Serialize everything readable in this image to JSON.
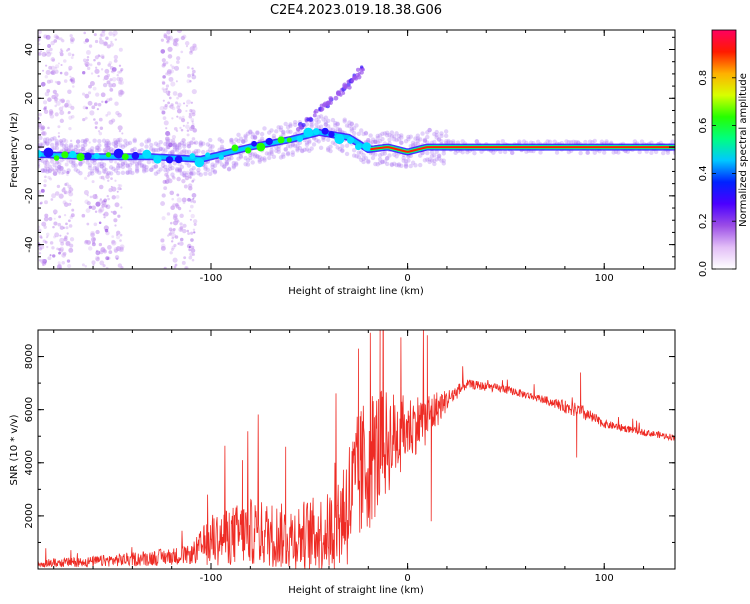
{
  "figure_title": "C2E4.2023.019.18.38.G06",
  "chart_data": [
    {
      "type": "heatmap",
      "xlabel": "Height of straight line (km)",
      "ylabel": "Frequency (Hz)",
      "xlim": [
        -188,
        136
      ],
      "ylim": [
        -50,
        48
      ],
      "xticks": [
        -100,
        0,
        100
      ],
      "yticks": [
        -40,
        -20,
        0,
        20,
        40
      ],
      "colorbar": {
        "label": "Normalized spectral amplitude",
        "range": [
          0,
          1
        ],
        "ticks": [
          0.0,
          0.2,
          0.4,
          0.6,
          0.8
        ],
        "tick_labels": [
          "0.0",
          "0.2",
          "0.4",
          "0.6",
          "0.8"
        ],
        "colors": [
          "#ffffff",
          "#e3bff7",
          "#9b4de6",
          "#4b00ff",
          "#0022ff",
          "#00c8ff",
          "#00ff80",
          "#26ff00",
          "#d8ff00",
          "#ffb000",
          "#ff1a00",
          "#ff0060"
        ]
      },
      "tone_ridge": [
        {
          "x": -188,
          "y": -3
        },
        {
          "x": -160,
          "y": -4
        },
        {
          "x": -130,
          "y": -4
        },
        {
          "x": -105,
          "y": -5
        },
        {
          "x": -80,
          "y": 0
        },
        {
          "x": -60,
          "y": 3
        },
        {
          "x": -45,
          "y": 6
        },
        {
          "x": -30,
          "y": 4
        },
        {
          "x": -20,
          "y": -1
        },
        {
          "x": -10,
          "y": 0
        },
        {
          "x": 0,
          "y": -2
        },
        {
          "x": 10,
          "y": 0
        },
        {
          "x": 30,
          "y": 0
        },
        {
          "x": 136,
          "y": 0
        }
      ],
      "rising_branch": [
        {
          "x": -55,
          "y": 8
        },
        {
          "x": -45,
          "y": 15
        },
        {
          "x": -35,
          "y": 22
        },
        {
          "x": -27,
          "y": 28
        },
        {
          "x": -22,
          "y": 33
        }
      ]
    },
    {
      "type": "line",
      "xlabel": "Height of straight line (km)",
      "ylabel": "SNR (10 * v/v)",
      "xlim": [
        -188,
        136
      ],
      "ylim": [
        0,
        9000
      ],
      "xticks": [
        -100,
        0,
        100
      ],
      "yticks": [
        2000,
        4000,
        6000,
        8000
      ],
      "color": "#ee2b24",
      "envelope": [
        {
          "x": -188,
          "base": 150,
          "spread": 300
        },
        {
          "x": -160,
          "base": 200,
          "spread": 400
        },
        {
          "x": -130,
          "base": 300,
          "spread": 600
        },
        {
          "x": -110,
          "base": 400,
          "spread": 700
        },
        {
          "x": -100,
          "base": 700,
          "spread": 2000
        },
        {
          "x": -80,
          "base": 900,
          "spread": 2500
        },
        {
          "x": -60,
          "base": 700,
          "spread": 2500
        },
        {
          "x": -40,
          "base": 800,
          "spread": 3000
        },
        {
          "x": -30,
          "base": 1500,
          "spread": 5000
        },
        {
          "x": -20,
          "base": 3000,
          "spread": 5500
        },
        {
          "x": -10,
          "base": 4000,
          "spread": 4000
        },
        {
          "x": 0,
          "base": 4800,
          "spread": 2500
        },
        {
          "x": 10,
          "base": 5300,
          "spread": 2000
        },
        {
          "x": 20,
          "base": 6200,
          "spread": 800
        },
        {
          "x": 30,
          "base": 6900,
          "spread": 350
        },
        {
          "x": 50,
          "base": 6700,
          "spread": 300
        },
        {
          "x": 70,
          "base": 6300,
          "spread": 300
        },
        {
          "x": 88,
          "base": 5800,
          "spread": 600
        },
        {
          "x": 100,
          "base": 5400,
          "spread": 300
        },
        {
          "x": 120,
          "base": 5100,
          "spread": 250
        },
        {
          "x": 136,
          "base": 4900,
          "spread": 250
        }
      ],
      "spikes": [
        {
          "x": -14,
          "y": 9000
        },
        {
          "x": -19,
          "y": 8900
        },
        {
          "x": 10,
          "y": 8800
        },
        {
          "x": -25,
          "y": 8300
        },
        {
          "x": 88,
          "y": 7400
        },
        {
          "x": -84,
          "y": 4100
        },
        {
          "x": -62,
          "y": 4600
        },
        {
          "x": -37,
          "y": 4000
        },
        {
          "x": 12,
          "y": 1800
        },
        {
          "x": 86,
          "y": 4200
        }
      ]
    }
  ]
}
